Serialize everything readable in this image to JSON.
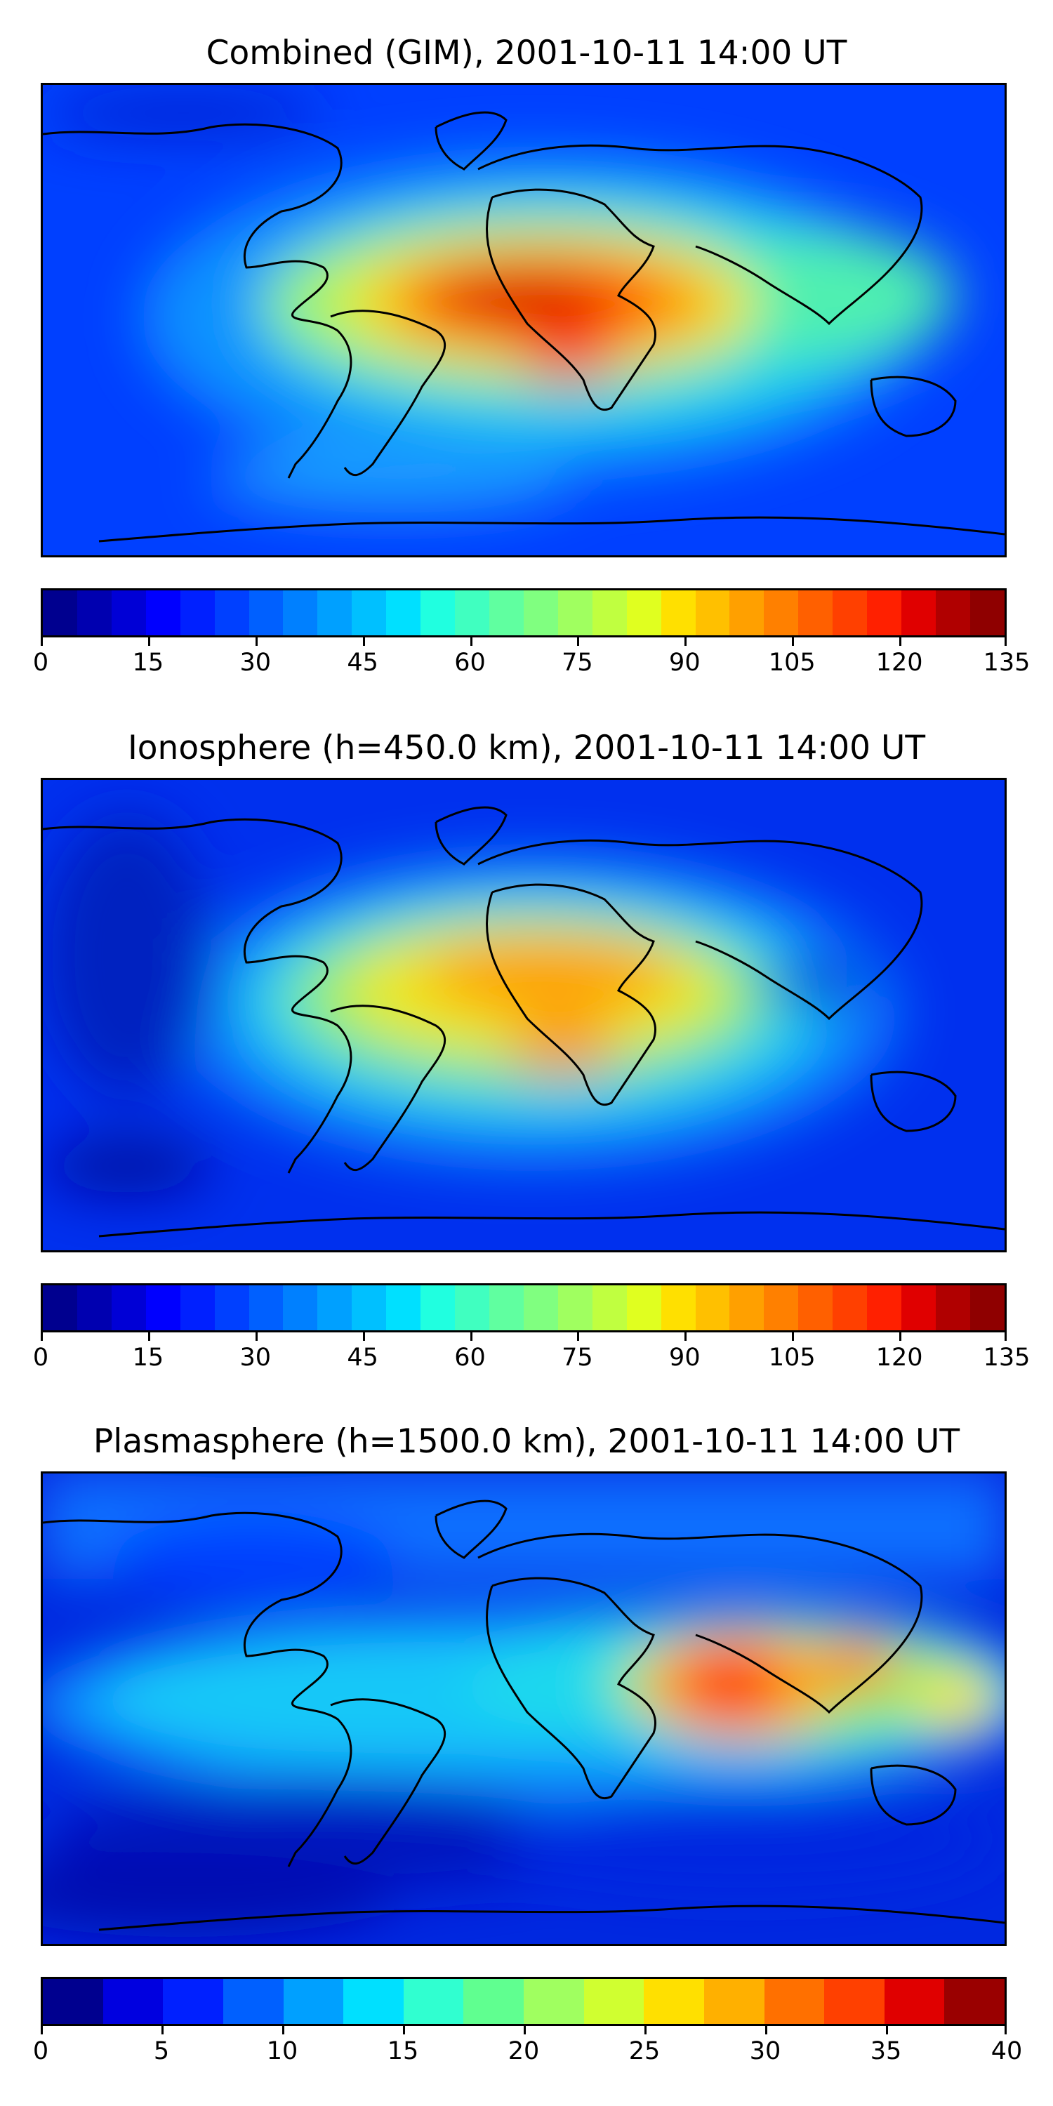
{
  "chart_data": [
    {
      "type": "heatmap",
      "title": "Combined (GIM), 2001-10-11 14:00 UT",
      "colormap": "jet",
      "levels": [
        0,
        5,
        10,
        15,
        20,
        25,
        30,
        35,
        40,
        45,
        50,
        55,
        60,
        65,
        70,
        75,
        80,
        85,
        90,
        95,
        100,
        105,
        110,
        115,
        120,
        125,
        130,
        135
      ],
      "colorbar_ticks": [
        "0",
        "15",
        "30",
        "45",
        "60",
        "75",
        "90",
        "105",
        "120",
        "135"
      ],
      "colorbar_range": [
        0,
        135
      ],
      "max_region": "tropical Africa / equatorial Atlantic",
      "max_value_approx": 125,
      "min_value_approx": 10
    },
    {
      "type": "heatmap",
      "title": "Ionosphere  (h=450.0 km), 2001-10-11 14:00 UT",
      "colormap": "jet",
      "levels": [
        0,
        5,
        10,
        15,
        20,
        25,
        30,
        35,
        40,
        45,
        50,
        55,
        60,
        65,
        70,
        75,
        80,
        85,
        90,
        95,
        100,
        105,
        110,
        115,
        120,
        125,
        130,
        135
      ],
      "colorbar_ticks": [
        "0",
        "15",
        "30",
        "45",
        "60",
        "75",
        "90",
        "105",
        "120",
        "135"
      ],
      "colorbar_range": [
        0,
        135
      ],
      "max_region": "West Africa",
      "max_value_approx": 105,
      "min_value_approx": 5
    },
    {
      "type": "heatmap",
      "title": "Plasmasphere (h=1500.0 km), 2001-10-11 14:00 UT",
      "colormap": "jet",
      "levels": [
        0,
        2.5,
        5,
        7.5,
        10,
        12.5,
        15,
        17.5,
        20,
        22.5,
        25,
        27.5,
        30,
        32.5,
        35,
        37.5,
        40
      ],
      "colorbar_ticks": [
        "0",
        "5",
        "10",
        "15",
        "20",
        "25",
        "30",
        "35",
        "40"
      ],
      "colorbar_range": [
        0,
        40
      ],
      "max_region": "India / South China Sea",
      "max_value_approx": 36,
      "min_value_approx": 2
    }
  ]
}
